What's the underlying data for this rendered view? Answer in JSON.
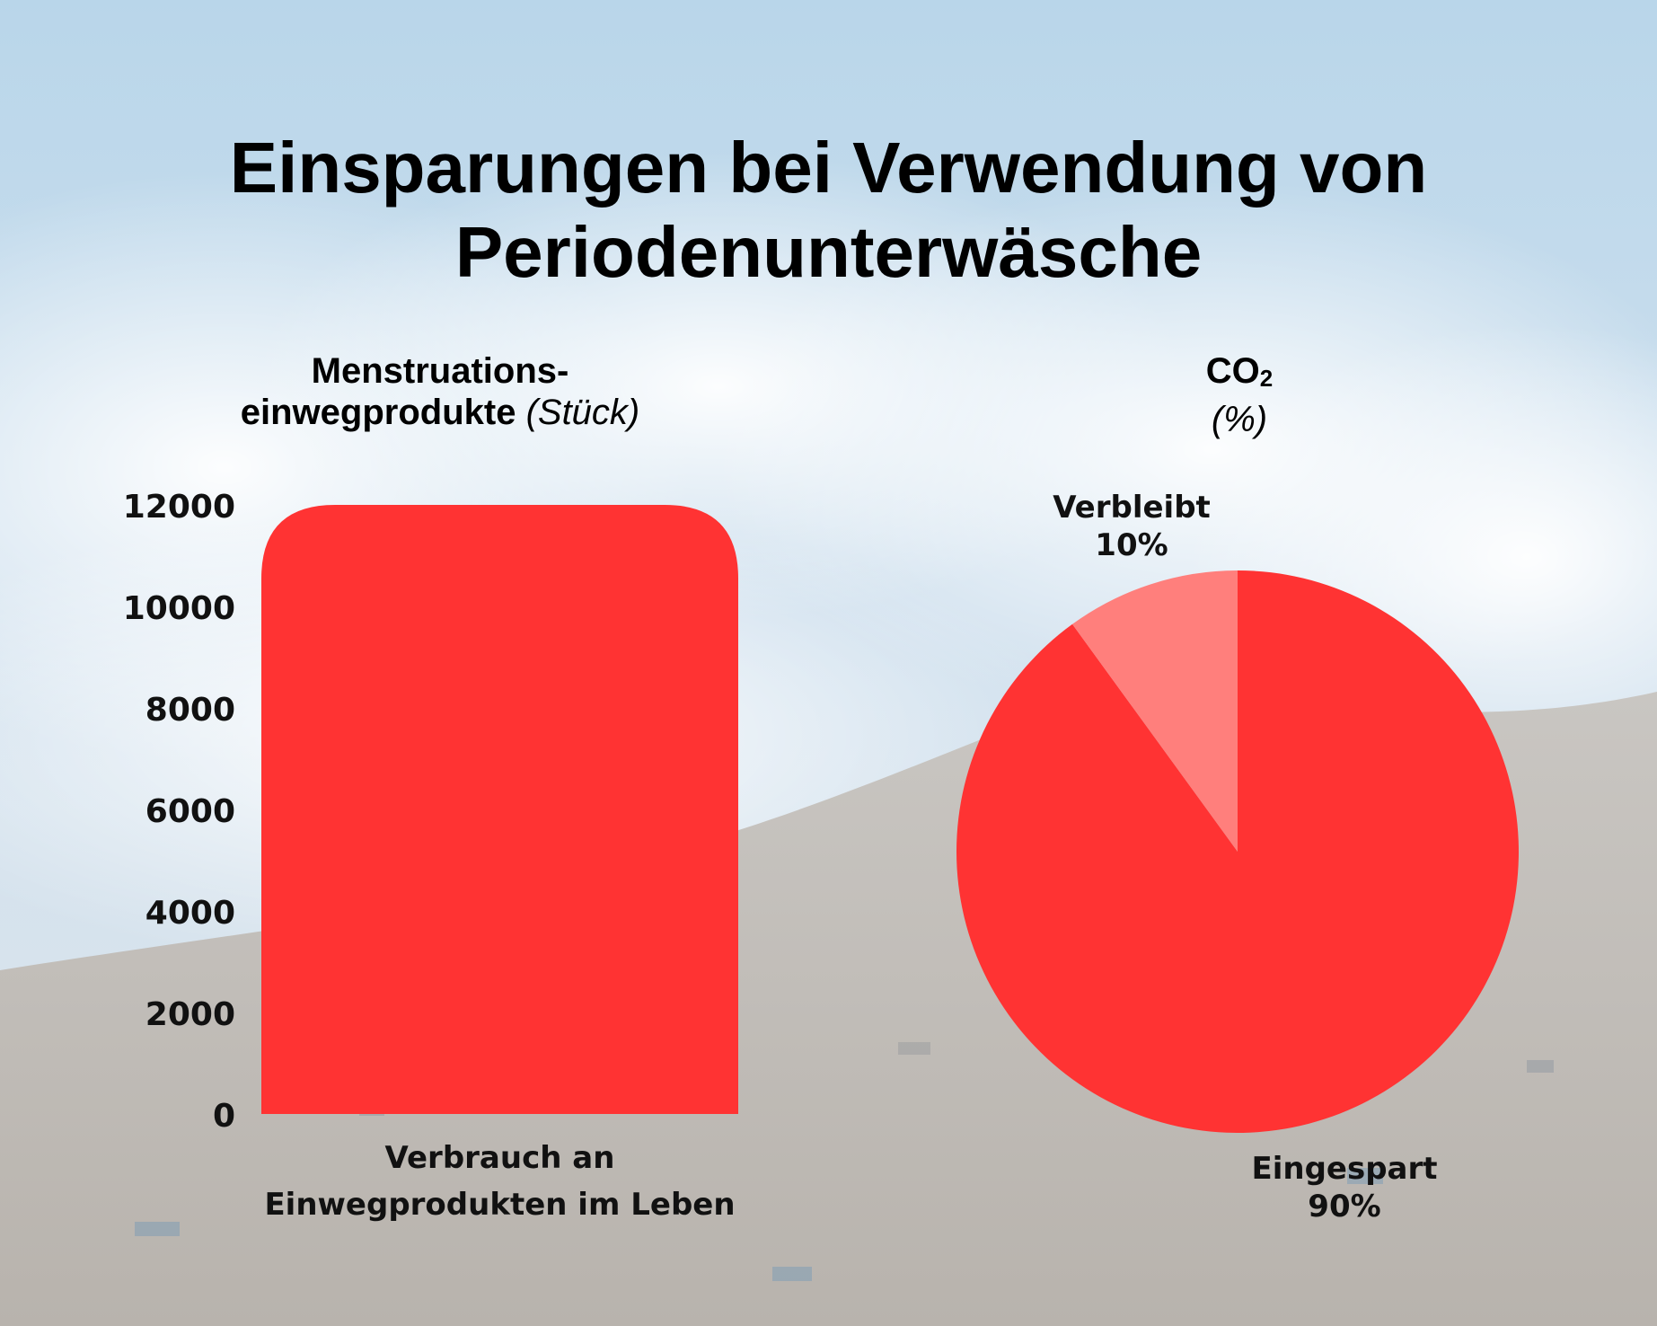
{
  "title_line1": "Einsparungen bei Verwendung von",
  "title_line2": "Periodenunterwäsche",
  "colors": {
    "bar": "#ff3333",
    "pie_main": "#ff3333",
    "pie_light": "#ff7f7c"
  },
  "chart_data": [
    {
      "type": "bar",
      "title_line1": "Menstruations-",
      "title_line2": "einwegprodukte",
      "title_unit": "(Stück)",
      "categories": [
        "Verbrauch an Einwegprodukten im Leben"
      ],
      "category_lines": [
        "Verbrauch an",
        "Einwegprodukten im Leben"
      ],
      "values": [
        12000
      ],
      "ylim": [
        0,
        12000
      ],
      "yticks": [
        "0",
        "2000",
        "4000",
        "6000",
        "8000",
        "10000",
        "12000"
      ],
      "grid": false
    },
    {
      "type": "pie",
      "title_main": "CO",
      "title_sub": "2",
      "title_unit": "(%)",
      "slices": [
        {
          "label": "Eingespart",
          "value": 90,
          "value_label": "90%"
        },
        {
          "label": "Verbleibt",
          "value": 10,
          "value_label": "10%"
        }
      ]
    }
  ]
}
